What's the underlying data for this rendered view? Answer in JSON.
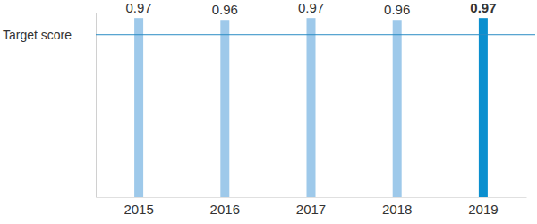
{
  "chart_data": {
    "type": "bar",
    "categories": [
      "2015",
      "2016",
      "2017",
      "2018",
      "2019"
    ],
    "values": [
      0.97,
      0.96,
      0.97,
      0.96,
      0.97
    ],
    "colors": [
      "#9ec9ea",
      "#9ec9ea",
      "#9ec9ea",
      "#9ec9ea",
      "#0a8fcf"
    ],
    "ylim": [
      0,
      1
    ],
    "tick_labels": "x",
    "data_labels": true,
    "grid": false,
    "target_line": {
      "label": "Target score",
      "value": 0.88
    }
  }
}
